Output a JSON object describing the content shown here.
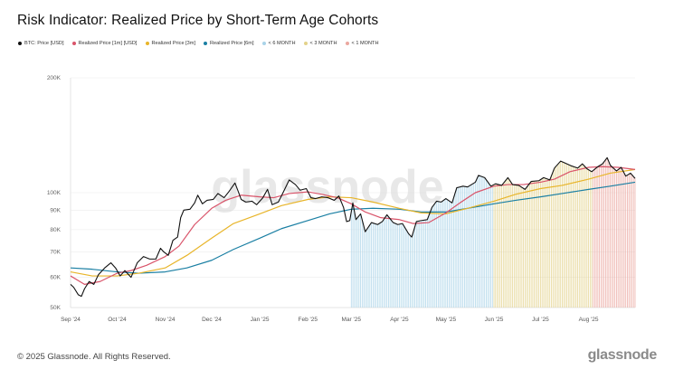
{
  "header": {
    "title": "Risk Indicator: Realized Price by Short-Term Age Cohorts"
  },
  "footer": {
    "copyright": "© 2025 Glassnode. All Rights Reserved.",
    "brand": "glassnode"
  },
  "watermark": "glassnode",
  "colors": {
    "price": "#111111",
    "rp_1m": "#d9546a",
    "rp_3m": "#e8b52a",
    "rp_6m": "#1a7fa3",
    "band_6m": "#a9d3e8",
    "band_3m": "#e3d28a",
    "band_1m": "#eba79f",
    "grid": "#ececec"
  },
  "chart_data": {
    "type": "line",
    "title": "Risk Indicator: Realized Price by Short-Term Age Cohorts",
    "y_scale": "log",
    "ylim": [
      50000,
      200000
    ],
    "y_ticks": [
      {
        "value": 50000,
        "label": "50K"
      },
      {
        "value": 60000,
        "label": "60K"
      },
      {
        "value": 70000,
        "label": "70K"
      },
      {
        "value": 80000,
        "label": "80K"
      },
      {
        "value": 90000,
        "label": "90K"
      },
      {
        "value": 100000,
        "label": "100K"
      },
      {
        "value": 200000,
        "label": "200K"
      }
    ],
    "xlim": [
      "2024-09-01",
      "2025-08-31"
    ],
    "x_ticks": [
      {
        "date": "2024-09-01",
        "label": "Sep '24"
      },
      {
        "date": "2024-10-01",
        "label": "Oct '24"
      },
      {
        "date": "2024-11-01",
        "label": "Nov '24"
      },
      {
        "date": "2024-12-01",
        "label": "Dec '24"
      },
      {
        "date": "2025-01-01",
        "label": "Jan '25"
      },
      {
        "date": "2025-02-01",
        "label": "Feb '25"
      },
      {
        "date": "2025-03-01",
        "label": "Mar '25"
      },
      {
        "date": "2025-04-01",
        "label": "Apr '25"
      },
      {
        "date": "2025-05-01",
        "label": "May '25"
      },
      {
        "date": "2025-06-01",
        "label": "Jun '25"
      },
      {
        "date": "2025-07-01",
        "label": "Jul '25"
      },
      {
        "date": "2025-08-01",
        "label": "Aug '25"
      }
    ],
    "legend": [
      {
        "key": "price",
        "label": "BTC: Price [USD]"
      },
      {
        "key": "rp_1m",
        "label": "Realized Price [1m] [USD]"
      },
      {
        "key": "rp_3m",
        "label": "Realized Price [3m]"
      },
      {
        "key": "rp_6m",
        "label": "Realized Price [6m]"
      },
      {
        "key": "band_6m",
        "label": "< 6 MONTH"
      },
      {
        "key": "band_3m",
        "label": "< 3 MONTH"
      },
      {
        "key": "band_1m",
        "label": "< 1 MONTH"
      }
    ],
    "bands": [
      {
        "key": "band_6m",
        "start": "2025-03-01",
        "end": "2025-05-31"
      },
      {
        "key": "band_3m",
        "start": "2025-06-01",
        "end": "2025-08-03"
      },
      {
        "key": "band_1m",
        "start": "2025-08-04",
        "end": "2025-08-31"
      }
    ],
    "series": [
      {
        "key": "price",
        "name": "BTC: Price [USD]",
        "points": [
          [
            "2024-09-01",
            57500
          ],
          [
            "2024-09-03",
            56500
          ],
          [
            "2024-09-06",
            54000
          ],
          [
            "2024-09-08",
            53500
          ],
          [
            "2024-09-10",
            56000
          ],
          [
            "2024-09-13",
            58500
          ],
          [
            "2024-09-16",
            57500
          ],
          [
            "2024-09-19",
            61000
          ],
          [
            "2024-09-23",
            63500
          ],
          [
            "2024-09-27",
            65500
          ],
          [
            "2024-09-30",
            63500
          ],
          [
            "2024-10-03",
            60500
          ],
          [
            "2024-10-06",
            62500
          ],
          [
            "2024-10-10",
            60000
          ],
          [
            "2024-10-14",
            65500
          ],
          [
            "2024-10-18",
            68000
          ],
          [
            "2024-10-22",
            67000
          ],
          [
            "2024-10-26",
            67000
          ],
          [
            "2024-10-29",
            71500
          ],
          [
            "2024-10-31",
            70000
          ],
          [
            "2024-11-03",
            68500
          ],
          [
            "2024-11-06",
            75000
          ],
          [
            "2024-11-09",
            76500
          ],
          [
            "2024-11-11",
            86000
          ],
          [
            "2024-11-13",
            90000
          ],
          [
            "2024-11-17",
            90500
          ],
          [
            "2024-11-20",
            94000
          ],
          [
            "2024-11-22",
            98500
          ],
          [
            "2024-11-25",
            93500
          ],
          [
            "2024-11-28",
            95500
          ],
          [
            "2024-12-02",
            96000
          ],
          [
            "2024-12-05",
            99500
          ],
          [
            "2024-12-09",
            97000
          ],
          [
            "2024-12-12",
            100500
          ],
          [
            "2024-12-16",
            106000
          ],
          [
            "2024-12-18",
            101000
          ],
          [
            "2024-12-20",
            96000
          ],
          [
            "2024-12-23",
            94500
          ],
          [
            "2024-12-27",
            95000
          ],
          [
            "2024-12-30",
            93000
          ],
          [
            "2025-01-03",
            97000
          ],
          [
            "2025-01-06",
            102000
          ],
          [
            "2025-01-09",
            93000
          ],
          [
            "2025-01-13",
            94500
          ],
          [
            "2025-01-16",
            100000
          ],
          [
            "2025-01-20",
            108000
          ],
          [
            "2025-01-24",
            105000
          ],
          [
            "2025-01-27",
            101500
          ],
          [
            "2025-01-31",
            102500
          ],
          [
            "2025-02-03",
            97000
          ],
          [
            "2025-02-06",
            96500
          ],
          [
            "2025-02-10",
            97500
          ],
          [
            "2025-02-14",
            97000
          ],
          [
            "2025-02-18",
            95500
          ],
          [
            "2025-02-21",
            98000
          ],
          [
            "2025-02-24",
            91500
          ],
          [
            "2025-02-26",
            84000
          ],
          [
            "2025-02-28",
            84500
          ],
          [
            "2025-03-02",
            94000
          ],
          [
            "2025-03-04",
            85000
          ],
          [
            "2025-03-07",
            88000
          ],
          [
            "2025-03-10",
            79000
          ],
          [
            "2025-03-14",
            83500
          ],
          [
            "2025-03-18",
            82500
          ],
          [
            "2025-03-21",
            84000
          ],
          [
            "2025-03-24",
            87500
          ],
          [
            "2025-03-28",
            83500
          ],
          [
            "2025-03-31",
            82500
          ],
          [
            "2025-04-03",
            83000
          ],
          [
            "2025-04-07",
            78000
          ],
          [
            "2025-04-09",
            76500
          ],
          [
            "2025-04-12",
            84000
          ],
          [
            "2025-04-15",
            84500
          ],
          [
            "2025-04-19",
            85000
          ],
          [
            "2025-04-22",
            91500
          ],
          [
            "2025-04-25",
            95000
          ],
          [
            "2025-04-28",
            94500
          ],
          [
            "2025-05-01",
            96500
          ],
          [
            "2025-05-05",
            94000
          ],
          [
            "2025-05-08",
            103000
          ],
          [
            "2025-05-12",
            104000
          ],
          [
            "2025-05-15",
            103500
          ],
          [
            "2025-05-20",
            106500
          ],
          [
            "2025-05-22",
            111000
          ],
          [
            "2025-05-26",
            109500
          ],
          [
            "2025-05-30",
            104000
          ],
          [
            "2025-06-02",
            105500
          ],
          [
            "2025-06-06",
            104500
          ],
          [
            "2025-06-10",
            109500
          ],
          [
            "2025-06-13",
            105000
          ],
          [
            "2025-06-17",
            104500
          ],
          [
            "2025-06-21",
            102000
          ],
          [
            "2025-06-25",
            107000
          ],
          [
            "2025-06-30",
            107500
          ],
          [
            "2025-07-03",
            109500
          ],
          [
            "2025-07-07",
            108000
          ],
          [
            "2025-07-10",
            116000
          ],
          [
            "2025-07-14",
            121000
          ],
          [
            "2025-07-17",
            119500
          ],
          [
            "2025-07-21",
            117500
          ],
          [
            "2025-07-25",
            116000
          ],
          [
            "2025-07-28",
            119000
          ],
          [
            "2025-07-31",
            115500
          ],
          [
            "2025-08-03",
            113500
          ],
          [
            "2025-08-07",
            117000
          ],
          [
            "2025-08-10",
            119000
          ],
          [
            "2025-08-13",
            123500
          ],
          [
            "2025-08-15",
            118000
          ],
          [
            "2025-08-19",
            114000
          ],
          [
            "2025-08-22",
            116500
          ],
          [
            "2025-08-25",
            110500
          ],
          [
            "2025-08-28",
            112500
          ],
          [
            "2025-08-31",
            109000
          ]
        ]
      },
      {
        "key": "rp_1m",
        "name": "Realized Price [1m] [USD]",
        "points": [
          [
            "2024-09-01",
            60500
          ],
          [
            "2024-09-10",
            57500
          ],
          [
            "2024-09-20",
            58500
          ],
          [
            "2024-10-01",
            61500
          ],
          [
            "2024-10-10",
            62500
          ],
          [
            "2024-10-20",
            64500
          ],
          [
            "2024-11-01",
            68000
          ],
          [
            "2024-11-10",
            72500
          ],
          [
            "2024-11-20",
            82500
          ],
          [
            "2024-12-01",
            91000
          ],
          [
            "2024-12-10",
            95500
          ],
          [
            "2024-12-20",
            98500
          ],
          [
            "2025-01-01",
            97500
          ],
          [
            "2025-01-10",
            97000
          ],
          [
            "2025-01-20",
            99500
          ],
          [
            "2025-02-01",
            100500
          ],
          [
            "2025-02-10",
            99000
          ],
          [
            "2025-02-20",
            97000
          ],
          [
            "2025-03-01",
            93500
          ],
          [
            "2025-03-10",
            89000
          ],
          [
            "2025-03-20",
            86000
          ],
          [
            "2025-04-01",
            85000
          ],
          [
            "2025-04-10",
            83000
          ],
          [
            "2025-04-20",
            83500
          ],
          [
            "2025-05-01",
            88500
          ],
          [
            "2025-05-10",
            94000
          ],
          [
            "2025-05-20",
            100000
          ],
          [
            "2025-06-01",
            104000
          ],
          [
            "2025-06-10",
            105000
          ],
          [
            "2025-06-20",
            105000
          ],
          [
            "2025-07-01",
            106500
          ],
          [
            "2025-07-10",
            108500
          ],
          [
            "2025-07-20",
            113500
          ],
          [
            "2025-08-01",
            116500
          ],
          [
            "2025-08-10",
            117000
          ],
          [
            "2025-08-20",
            116500
          ],
          [
            "2025-08-31",
            115000
          ]
        ]
      },
      {
        "key": "rp_3m",
        "name": "Realized Price [3m]",
        "points": [
          [
            "2024-09-01",
            62000
          ],
          [
            "2024-09-15",
            60500
          ],
          [
            "2024-10-01",
            60500
          ],
          [
            "2024-10-15",
            61500
          ],
          [
            "2024-11-01",
            63500
          ],
          [
            "2024-11-15",
            68500
          ],
          [
            "2024-12-01",
            76000
          ],
          [
            "2024-12-15",
            83000
          ],
          [
            "2025-01-01",
            88000
          ],
          [
            "2025-01-15",
            92500
          ],
          [
            "2025-02-01",
            96000
          ],
          [
            "2025-02-15",
            97500
          ],
          [
            "2025-03-01",
            97000
          ],
          [
            "2025-03-15",
            94500
          ],
          [
            "2025-04-01",
            91000
          ],
          [
            "2025-04-15",
            88500
          ],
          [
            "2025-05-01",
            88000
          ],
          [
            "2025-05-15",
            91000
          ],
          [
            "2025-06-01",
            95000
          ],
          [
            "2025-06-15",
            99000
          ],
          [
            "2025-07-01",
            102500
          ],
          [
            "2025-07-15",
            104500
          ],
          [
            "2025-08-01",
            108500
          ],
          [
            "2025-08-15",
            112500
          ],
          [
            "2025-08-31",
            115000
          ]
        ]
      },
      {
        "key": "rp_6m",
        "name": "Realized Price [6m]",
        "points": [
          [
            "2024-09-01",
            63500
          ],
          [
            "2024-09-15",
            63000
          ],
          [
            "2024-10-01",
            62000
          ],
          [
            "2024-10-15",
            61500
          ],
          [
            "2024-11-01",
            62000
          ],
          [
            "2024-11-15",
            63500
          ],
          [
            "2024-12-01",
            66500
          ],
          [
            "2024-12-15",
            71000
          ],
          [
            "2025-01-01",
            76000
          ],
          [
            "2025-01-15",
            80500
          ],
          [
            "2025-02-01",
            84500
          ],
          [
            "2025-02-15",
            88000
          ],
          [
            "2025-03-01",
            90500
          ],
          [
            "2025-03-15",
            91000
          ],
          [
            "2025-04-01",
            90500
          ],
          [
            "2025-04-15",
            89000
          ],
          [
            "2025-05-01",
            89000
          ],
          [
            "2025-05-15",
            91000
          ],
          [
            "2025-06-01",
            93500
          ],
          [
            "2025-06-15",
            95500
          ],
          [
            "2025-07-01",
            97500
          ],
          [
            "2025-07-15",
            99500
          ],
          [
            "2025-08-01",
            102000
          ],
          [
            "2025-08-15",
            104000
          ],
          [
            "2025-08-31",
            106500
          ]
        ]
      }
    ]
  }
}
